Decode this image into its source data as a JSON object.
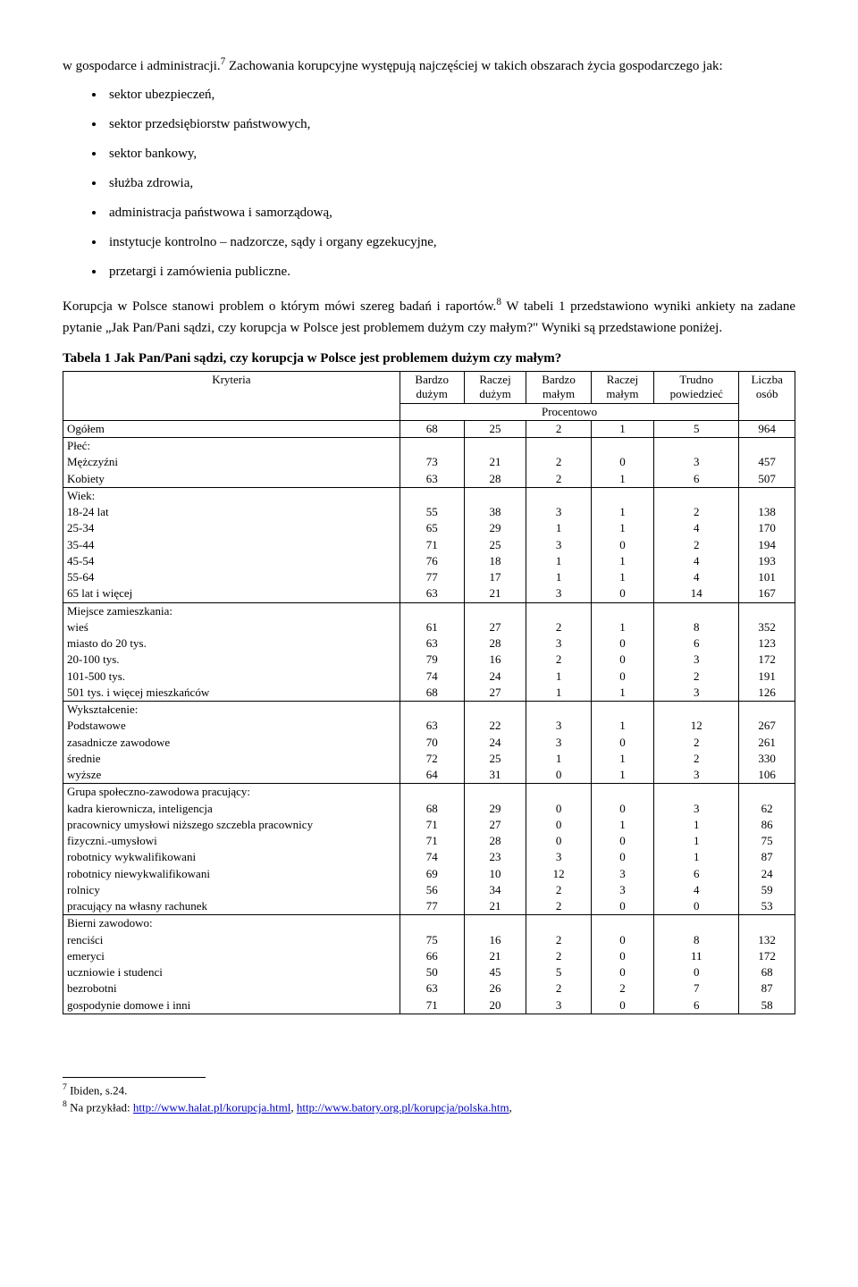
{
  "intro": {
    "p1_before_fn": "w gospodarce i administracji.",
    "fn7": "7",
    "p1_after_fn": " Zachowania korupcyjne występują najczęściej w takich obszarach życia gospodarczego jak:",
    "bullets": [
      "sektor ubezpieczeń,",
      "sektor przedsiębiorstw państwowych,",
      "sektor bankowy,",
      "służba zdrowia,",
      "administracja państwowa i samorządową,",
      "instytucje kontrolno – nadzorcze, sądy i organy egzekucyjne,",
      "przetargi i zamówienia publiczne."
    ],
    "p2_before_fn": "Korupcja w Polsce stanowi problem o którym mówi szereg badań i raportów.",
    "fn8": "8",
    "p2_after_fn": " W tabeli 1 przedstawiono wyniki ankiety na zadane pytanie „Jak Pan/Pani sądzi, czy korupcja w Polsce jest problemem dużym czy małym?\" Wyniki są przedstawione poniżej."
  },
  "table": {
    "title": "Tabela 1 Jak Pan/Pani sądzi, czy korupcja w Polsce jest problemem dużym czy małym?",
    "header": {
      "kryteria": "Kryteria",
      "cols": [
        "Bardzo dużym",
        "Raczej dużym",
        "Bardzo małym",
        "Raczej małym",
        "Trudno powiedzieć"
      ],
      "liczba": "Liczba osób",
      "procentowo": "Procentowo"
    },
    "rows": {
      "ogolem": {
        "label": "Ogółem",
        "v": [
          68,
          25,
          2,
          1,
          5,
          964
        ]
      },
      "plec": {
        "label": "Płeć:",
        "items": [
          {
            "label": "Mężczyźni",
            "v": [
              73,
              21,
              2,
              0,
              3,
              457
            ]
          },
          {
            "label": "Kobiety",
            "v": [
              63,
              28,
              2,
              1,
              6,
              507
            ]
          }
        ]
      },
      "wiek": {
        "label": "Wiek:",
        "items": [
          {
            "label": "18-24 lat",
            "v": [
              55,
              38,
              3,
              1,
              2,
              138
            ]
          },
          {
            "label": "25-34",
            "v": [
              65,
              29,
              1,
              1,
              4,
              170
            ]
          },
          {
            "label": "35-44",
            "v": [
              71,
              25,
              3,
              0,
              2,
              194
            ]
          },
          {
            "label": "45-54",
            "v": [
              76,
              18,
              1,
              1,
              4,
              193
            ]
          },
          {
            "label": "55-64",
            "v": [
              77,
              17,
              1,
              1,
              4,
              101
            ]
          },
          {
            "label": "65 lat i więcej",
            "v": [
              63,
              21,
              3,
              0,
              14,
              167
            ]
          }
        ]
      },
      "miejsce": {
        "label": "Miejsce zamieszkania:",
        "items": [
          {
            "label": "wieś",
            "v": [
              61,
              27,
              2,
              1,
              8,
              352
            ]
          },
          {
            "label": "miasto do 20 tys.",
            "v": [
              63,
              28,
              3,
              0,
              6,
              123
            ]
          },
          {
            "label": "20-100 tys.",
            "v": [
              79,
              16,
              2,
              0,
              3,
              172
            ]
          },
          {
            "label": "101-500 tys.",
            "v": [
              74,
              24,
              1,
              0,
              2,
              191
            ]
          },
          {
            "label": "501 tys. i więcej mieszkańców",
            "v": [
              68,
              27,
              1,
              1,
              3,
              126
            ]
          }
        ]
      },
      "wyksztalcenie": {
        "label": "Wykształcenie:",
        "items": [
          {
            "label": "Podstawowe",
            "v": [
              63,
              22,
              3,
              1,
              12,
              267
            ]
          },
          {
            "label": "zasadnicze zawodowe",
            "v": [
              70,
              24,
              3,
              0,
              2,
              261
            ]
          },
          {
            "label": "średnie",
            "v": [
              72,
              25,
              1,
              1,
              2,
              330
            ]
          },
          {
            "label": "wyższe",
            "v": [
              64,
              31,
              0,
              1,
              3,
              106
            ]
          }
        ]
      },
      "grupa": {
        "label": "Grupa społeczno-zawodowa pracujący:",
        "items": [
          {
            "label": "kadra kierownicza, inteligencja",
            "v": [
              68,
              29,
              0,
              0,
              3,
              62
            ]
          },
          {
            "label": "pracownicy umysłowi niższego szczebla pracownicy",
            "v": [
              71,
              27,
              0,
              1,
              1,
              86
            ]
          },
          {
            "label": "fizyczni.-umysłowi",
            "v": [
              71,
              28,
              0,
              0,
              1,
              75
            ]
          },
          {
            "label": "robotnicy wykwalifikowani",
            "v": [
              74,
              23,
              3,
              0,
              1,
              87
            ]
          },
          {
            "label": "robotnicy niewykwalifikowani",
            "v": [
              69,
              10,
              12,
              3,
              6,
              24
            ]
          },
          {
            "label": "rolnicy",
            "v": [
              56,
              34,
              2,
              3,
              4,
              59
            ]
          },
          {
            "label": "pracujący na własny rachunek",
            "v": [
              77,
              21,
              2,
              0,
              0,
              53
            ]
          }
        ]
      },
      "bierni": {
        "label": "Bierni zawodowo:",
        "items": [
          {
            "label": "renciści",
            "v": [
              75,
              16,
              2,
              0,
              8,
              132
            ]
          },
          {
            "label": "emeryci",
            "v": [
              66,
              21,
              2,
              0,
              11,
              172
            ]
          },
          {
            "label": "uczniowie i studenci",
            "v": [
              50,
              45,
              5,
              0,
              0,
              68
            ]
          },
          {
            "label": "bezrobotni",
            "v": [
              63,
              26,
              2,
              2,
              7,
              87
            ]
          },
          {
            "label": "gospodynie domowe i inni",
            "v": [
              71,
              20,
              3,
              0,
              6,
              58
            ]
          }
        ]
      }
    }
  },
  "footnotes": {
    "fn7": {
      "num": "7",
      "text": " Ibiden, s.24."
    },
    "fn8": {
      "num": "8",
      "prefix": " Na przykład: ",
      "link1_text": "http://www.halat.pl/korupcja.html",
      "sep": ", ",
      "link2_text": "http://www.batory.org.pl/korupcja/polska.htm",
      "suffix": ","
    }
  }
}
